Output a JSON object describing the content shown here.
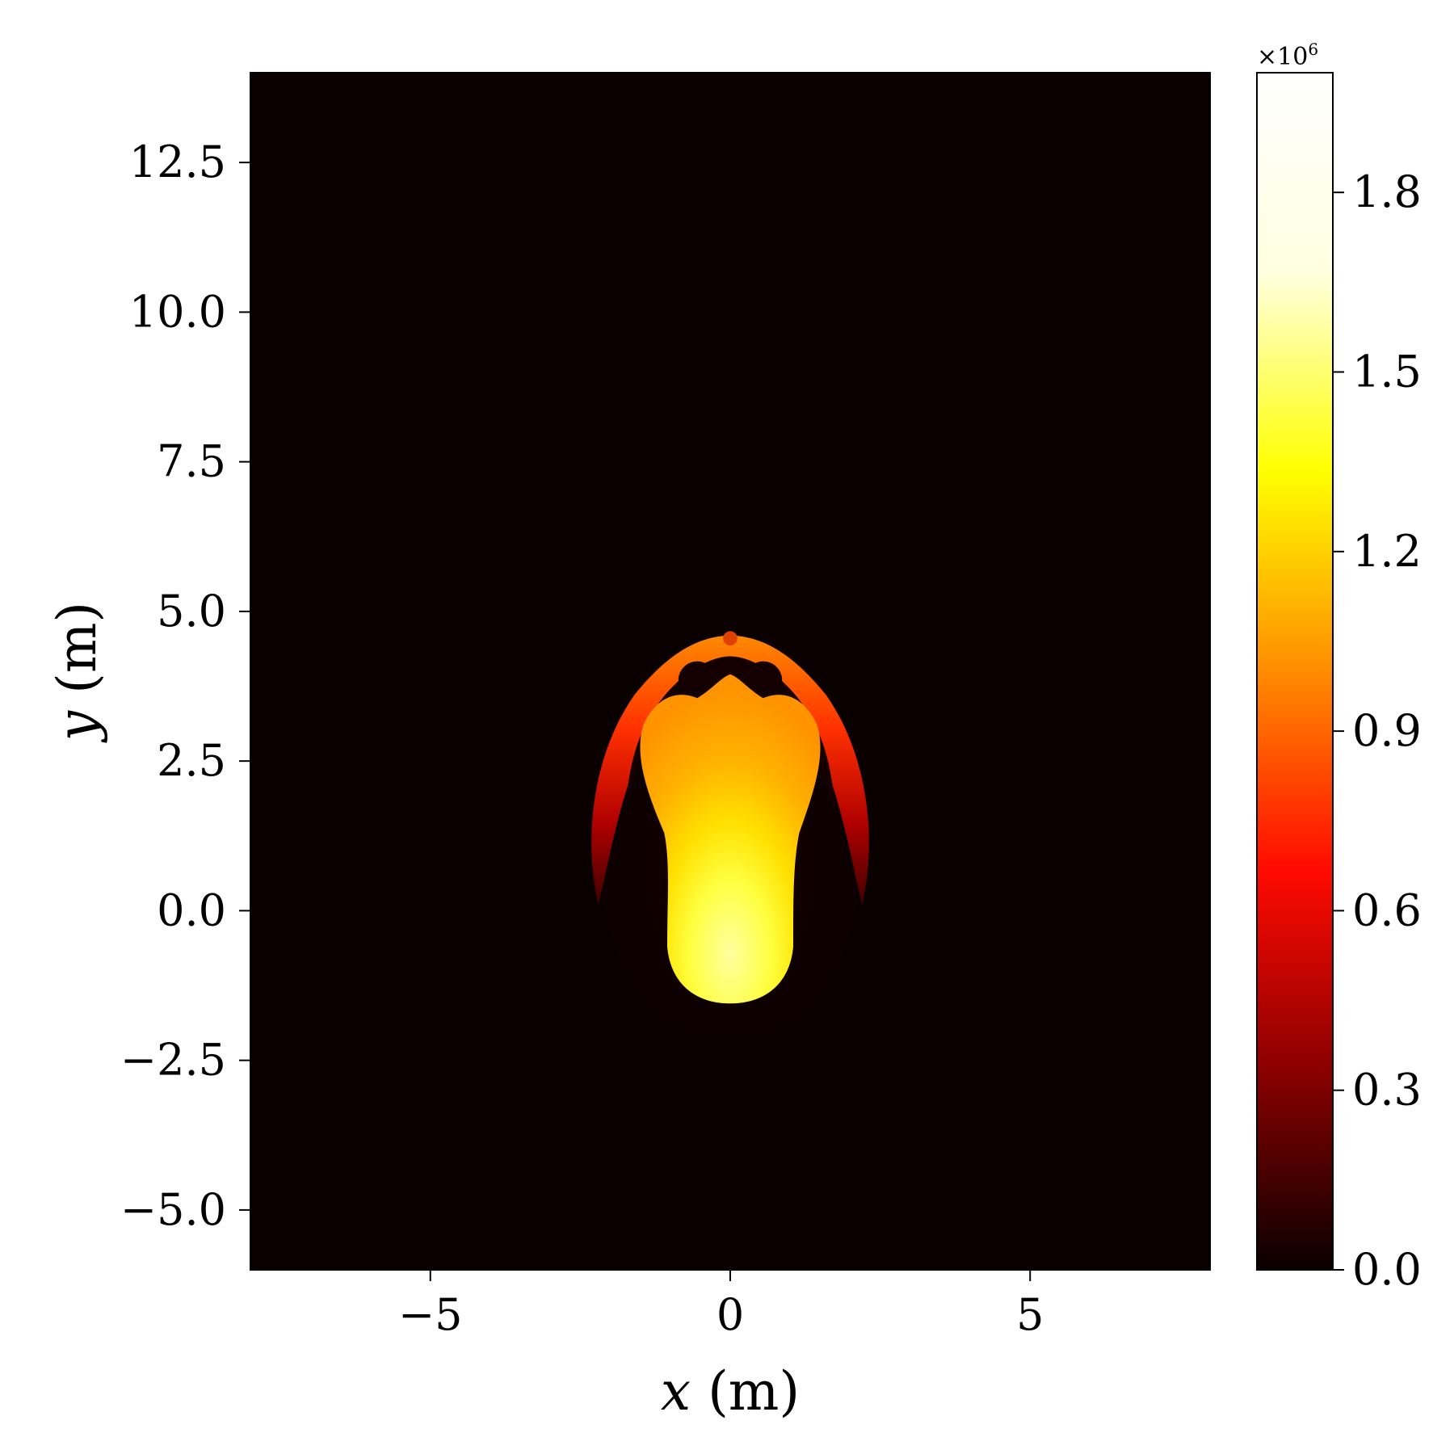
{
  "chart_data": {
    "type": "heatmap",
    "title": "",
    "xlabel": {
      "var": "x",
      "unit": "(m)"
    },
    "ylabel": {
      "var": "y",
      "unit": "(m)"
    },
    "xlim": [
      -8,
      8
    ],
    "ylim": [
      -6,
      14
    ],
    "x_ticks": [
      {
        "value": -5,
        "label": "−5"
      },
      {
        "value": 0,
        "label": "0"
      },
      {
        "value": 5,
        "label": "5"
      }
    ],
    "y_ticks": [
      {
        "value": -5,
        "label": "−5.0"
      },
      {
        "value": -2.5,
        "label": "−2.5"
      },
      {
        "value": 0,
        "label": "0.0"
      },
      {
        "value": 2.5,
        "label": "2.5"
      },
      {
        "value": 5,
        "label": "5.0"
      },
      {
        "value": 7.5,
        "label": "7.5"
      },
      {
        "value": 10,
        "label": "10.0"
      },
      {
        "value": 12.5,
        "label": "12.5"
      }
    ],
    "colorbar": {
      "colormap": "hot",
      "range": [
        0,
        2.0
      ],
      "offset_text": {
        "base": "×10",
        "exponent": "6"
      },
      "ticks": [
        {
          "value": 0.0,
          "label": "0.0"
        },
        {
          "value": 0.3,
          "label": "0.3"
        },
        {
          "value": 0.6,
          "label": "0.6"
        },
        {
          "value": 0.9,
          "label": "0.9"
        },
        {
          "value": 1.2,
          "label": "1.2"
        },
        {
          "value": 1.5,
          "label": "1.5"
        },
        {
          "value": 1.8,
          "label": "1.8"
        }
      ],
      "colors": [
        "#0a0000",
        "#8a0000",
        "#ff0a00",
        "#ff8c00",
        "#ffff00",
        "#ffffe0",
        "#ffffff"
      ]
    },
    "background_value": 0.0,
    "plume": {
      "core_value_range": [
        1.15,
        1.9
      ],
      "outer_shell_value_range": [
        0.3,
        1.0
      ],
      "core_bottom_y": -1.55,
      "cap_top_y": 4.6,
      "half_width_max_x": 2.4
    },
    "grid": false
  }
}
